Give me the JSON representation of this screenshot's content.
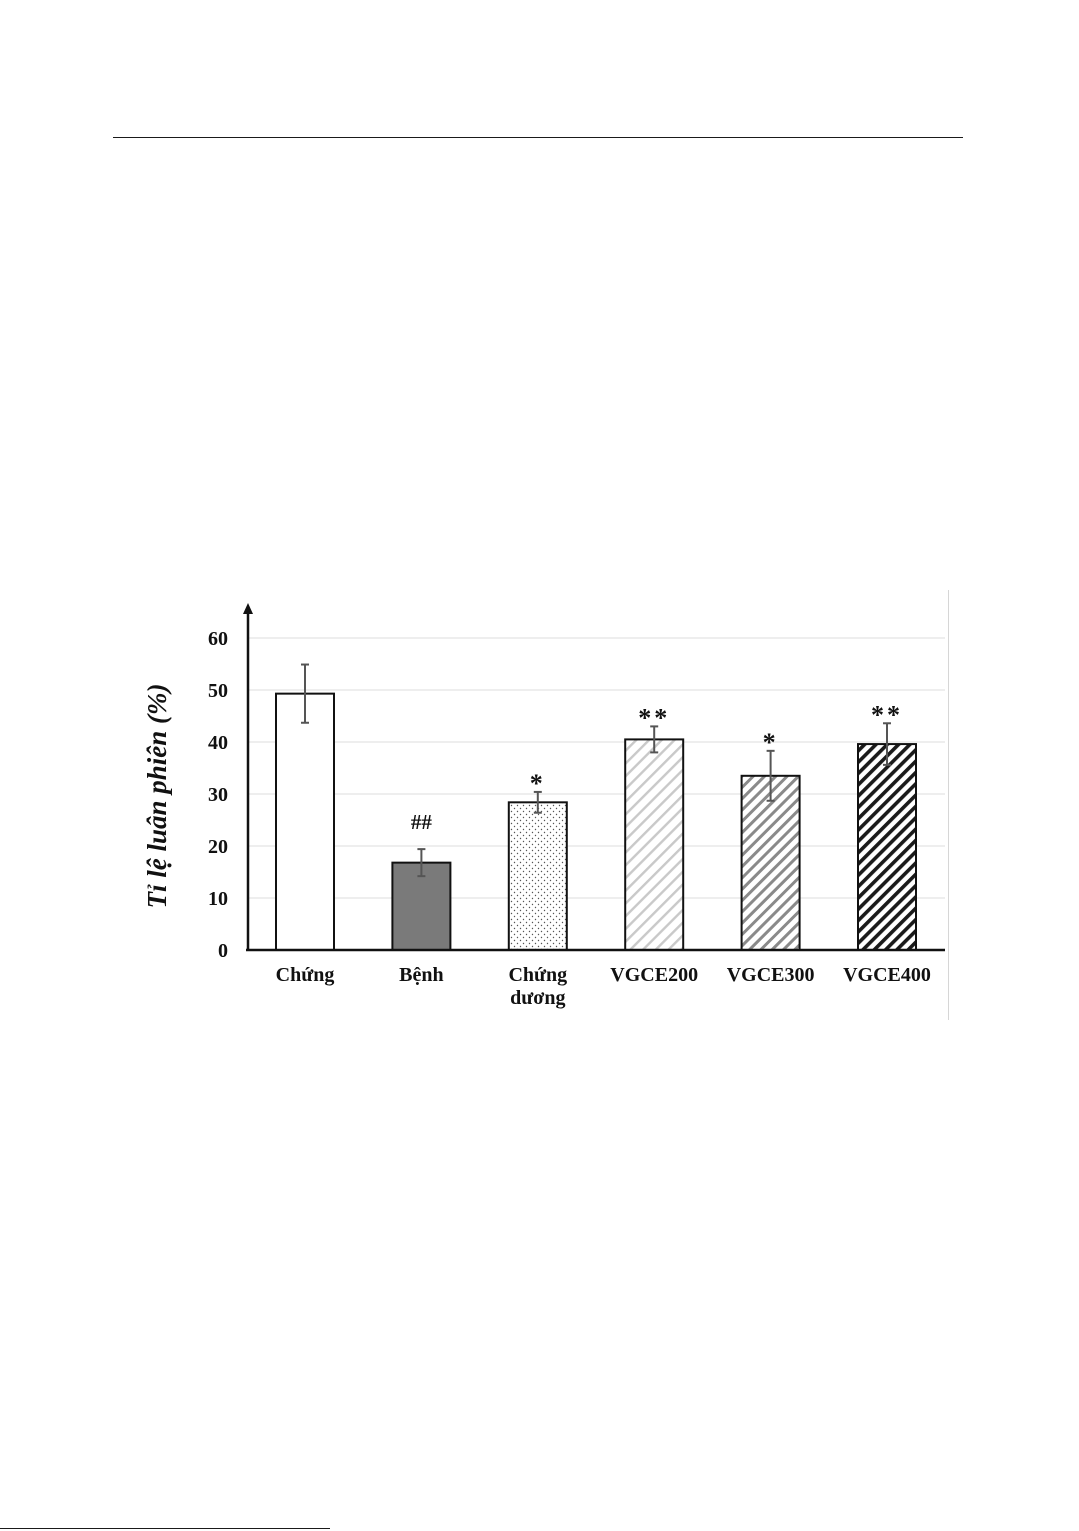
{
  "page": {
    "background": "#ffffff"
  },
  "chart_data": {
    "type": "bar",
    "title": "",
    "xlabel": "",
    "ylabel": "Tỉ lệ luân phiên (%)",
    "ylim": [
      0,
      60
    ],
    "yticks": [
      "0",
      "10",
      "20",
      "30",
      "40",
      "50",
      "60"
    ],
    "grid": true,
    "categories": [
      {
        "label": [
          "Chứng"
        ],
        "value": 49.3,
        "error": 5.6,
        "annotation": "",
        "fill": "plain-white"
      },
      {
        "label": [
          "Bệnh"
        ],
        "value": 16.8,
        "error": 2.6,
        "annotation": "##",
        "fill": "solid-gray"
      },
      {
        "label": [
          "Chứng",
          "dương"
        ],
        "value": 28.4,
        "error": 2.0,
        "annotation": "*",
        "fill": "dotted"
      },
      {
        "label": [
          "VGCE200"
        ],
        "value": 40.5,
        "error": 2.5,
        "annotation": "**",
        "fill": "light-diagonal-hatch"
      },
      {
        "label": [
          "VGCE300"
        ],
        "value": 33.5,
        "error": 4.8,
        "annotation": "*",
        "fill": "medium-diagonal-hatch"
      },
      {
        "label": [
          "VGCE400"
        ],
        "value": 39.6,
        "error": 4.0,
        "annotation": "**",
        "fill": "dark-diagonal-hatch"
      }
    ],
    "colors": {
      "axis": "#111111",
      "grid": "#dcdcdc",
      "bar_outline": "#111111",
      "solid_gray": "#7a7a7a",
      "hatch_light": "#c9c9c9",
      "hatch_medium": "#8a8a8a",
      "hatch_dark": "#1a1a1a",
      "dots": "#555555",
      "error_bar": "#555555"
    }
  }
}
